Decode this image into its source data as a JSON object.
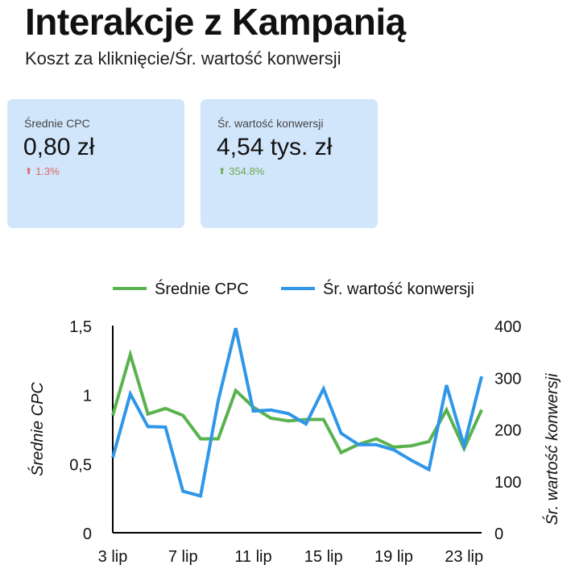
{
  "header": {
    "title": "Interakcje z Kampanią",
    "subtitle": "Koszt za kliknięcie/Śr. wartość konwersji"
  },
  "scorecards": [
    {
      "label": "Średnie CPC",
      "value": "0,80 zł",
      "delta": "1.3%",
      "delta_color": "#e06666"
    },
    {
      "label": "Śr. wartość konwersji",
      "value": "4,54 tys. zł",
      "delta": "354.8%",
      "delta_color": "#6aa84f"
    }
  ],
  "colors": {
    "cpc": "#5ab24f",
    "conv": "#2f96e8",
    "card_bg": "#d2e6fb"
  },
  "chart_data": {
    "type": "line",
    "x": [
      "3 lip",
      "4 lip",
      "5 lip",
      "6 lip",
      "7 lip",
      "8 lip",
      "9 lip",
      "10 lip",
      "11 lip",
      "12 lip",
      "13 lip",
      "14 lip",
      "15 lip",
      "16 lip",
      "17 lip",
      "18 lip",
      "19 lip",
      "20 lip",
      "21 lip",
      "22 lip",
      "23 lip",
      "24 lip"
    ],
    "x_tick_labels": [
      "3 lip",
      "7 lip",
      "11 lip",
      "15 lip",
      "19 lip",
      "23 lip"
    ],
    "series": [
      {
        "name": "Średnie CPC",
        "axis": "left",
        "values": [
          0.85,
          1.29,
          0.86,
          0.9,
          0.85,
          0.68,
          0.68,
          1.03,
          0.91,
          0.83,
          0.81,
          0.82,
          0.82,
          0.58,
          0.64,
          0.68,
          0.62,
          0.63,
          0.66,
          0.89,
          0.61,
          0.89
        ]
      },
      {
        "name": "Śr. wartość konwersji",
        "axis": "right",
        "values": [
          145,
          268,
          205,
          204,
          80,
          71,
          255,
          395,
          235,
          237,
          230,
          210,
          278,
          192,
          170,
          170,
          160,
          140,
          122,
          285,
          168,
          302
        ]
      }
    ],
    "left_axis": {
      "label": "Średnie CPC",
      "ticks": [
        "0",
        "0,5",
        "1",
        "1,5"
      ],
      "range": [
        0,
        1.5
      ]
    },
    "right_axis": {
      "label": "Śr. wartość konwersji",
      "ticks": [
        "0",
        "100",
        "200",
        "300",
        "400"
      ],
      "range": [
        0,
        400
      ]
    },
    "legend_position": "top"
  }
}
